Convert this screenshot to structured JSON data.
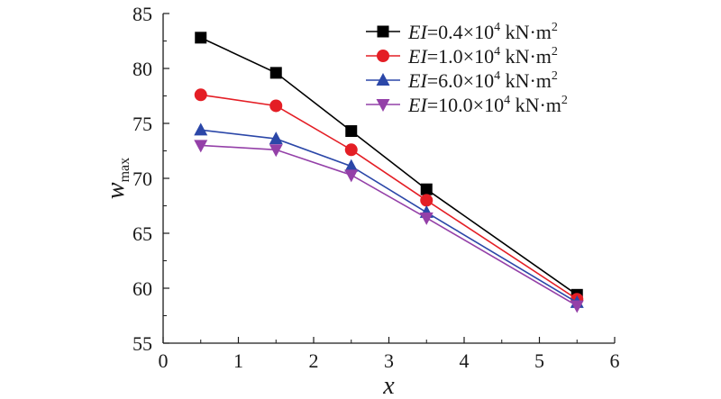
{
  "chart_data": {
    "type": "line",
    "xlabel": "x",
    "ylabel": "w",
    "ylabel_sub": "max",
    "xlim": [
      0,
      6
    ],
    "ylim": [
      55,
      85
    ],
    "x_ticks": [
      0,
      1,
      2,
      3,
      4,
      5,
      6
    ],
    "y_ticks": [
      55,
      60,
      65,
      70,
      75,
      80,
      85
    ],
    "x": [
      0.5,
      1.5,
      2.5,
      3.5,
      5.5
    ],
    "grid": false,
    "legend_position": "top-right",
    "series": [
      {
        "name": "EI=0.4×10^4 kN·m^2",
        "legend_italic": "EI",
        "legend_main": "=0.4×10",
        "legend_exp": "4",
        "legend_unit": " kN·m",
        "legend_unit_exp": "2",
        "values": [
          82.8,
          79.6,
          74.3,
          69.0,
          59.4
        ],
        "color": "#000000",
        "marker": "square"
      },
      {
        "name": "EI=1.0×10^4 kN·m^2",
        "legend_italic": "EI",
        "legend_main": "=1.0×10",
        "legend_exp": "4",
        "legend_unit": " kN·m",
        "legend_unit_exp": "2",
        "values": [
          77.6,
          76.6,
          72.6,
          68.0,
          59.0
        ],
        "color": "#e41e25",
        "marker": "circle"
      },
      {
        "name": "EI=6.0×10^4 kN·m^2",
        "legend_italic": "EI",
        "legend_main": "=6.0×10",
        "legend_exp": "4",
        "legend_unit": " kN·m",
        "legend_unit_exp": "2",
        "values": [
          74.4,
          73.6,
          71.1,
          66.9,
          58.7
        ],
        "color": "#2b47a8",
        "marker": "triangle-up"
      },
      {
        "name": "EI=10.0×10^4 kN·m^2",
        "legend_italic": "EI",
        "legend_main": "=10.0×10",
        "legend_exp": "4",
        "legend_unit": " kN·m",
        "legend_unit_exp": "2",
        "values": [
          73.0,
          72.6,
          70.3,
          66.4,
          58.4
        ],
        "color": "#9440a8",
        "marker": "triangle-down"
      }
    ]
  }
}
